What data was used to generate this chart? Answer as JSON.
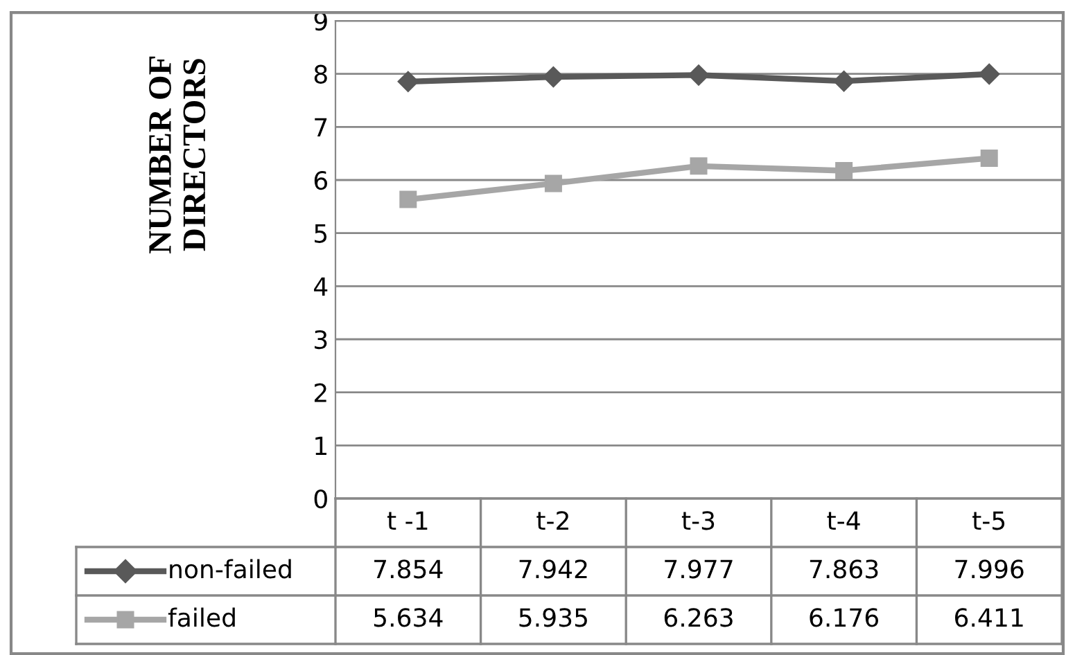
{
  "chart_data": {
    "type": "line",
    "ylabel": "NUMBER OF DIRECTORS",
    "categories": [
      "t -1",
      "t-2",
      "t-3",
      "t-4",
      "t-5"
    ],
    "series": [
      {
        "name": "non-failed",
        "color": "#595959",
        "marker": "diamond",
        "values": [
          7.854,
          7.942,
          7.977,
          7.863,
          7.996
        ]
      },
      {
        "name": "failed",
        "color": "#a6a6a6",
        "marker": "square",
        "values": [
          5.634,
          5.935,
          6.263,
          6.176,
          6.411
        ]
      }
    ],
    "ylim": [
      0,
      9
    ],
    "yticks": [
      0,
      1,
      2,
      3,
      4,
      5,
      6,
      7,
      8,
      9
    ],
    "grid": "y",
    "data_labels": true,
    "legend": "bottom",
    "line_style": "solid"
  }
}
